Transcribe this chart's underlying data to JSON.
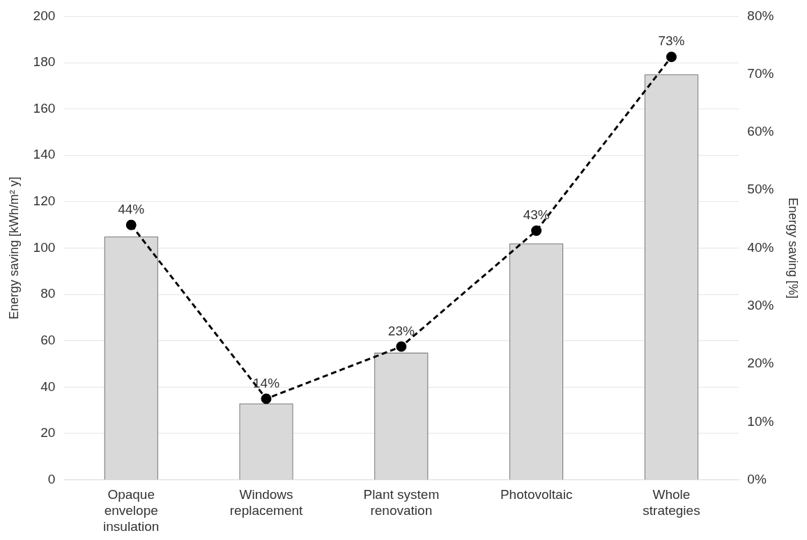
{
  "chart_data": {
    "type": "bar",
    "ylabel": "Energy saving [kWh/m² y]",
    "y2label": "Energy saving [%]",
    "categories": [
      "Opaque envelope insulation",
      "Windows replacement",
      "Plant system renovation",
      "Photovoltaic",
      "Whole strategies"
    ],
    "series": [
      {
        "color": "#d9d9d9",
        "values": [
          105,
          33,
          55,
          102,
          175
        ]
      },
      {
        "type": "line",
        "axis": "y2",
        "color": "#000000",
        "values": [
          44,
          14,
          23,
          43,
          73
        ],
        "value_labels": [
          "44%",
          "14%",
          "23%",
          "43%",
          "73%"
        ]
      }
    ],
    "ylim": [
      0,
      200
    ],
    "yticks": [
      0,
      20,
      40,
      60,
      80,
      100,
      120,
      140,
      160,
      180,
      200
    ],
    "y2lim": [
      0,
      80
    ],
    "y2ticks": [
      {
        "value": 0,
        "label": "0%"
      },
      {
        "value": 10,
        "label": "10%"
      },
      {
        "value": 20,
        "label": "20%"
      },
      {
        "value": 30,
        "label": "30%"
      },
      {
        "value": 40,
        "label": "40%"
      },
      {
        "value": 50,
        "label": "50%"
      },
      {
        "value": 60,
        "label": "60%"
      },
      {
        "value": 70,
        "label": "70%"
      },
      {
        "value": 80,
        "label": "80%"
      }
    ],
    "grid": "y",
    "legend": false,
    "marker": "circle",
    "line_style": "dashed"
  }
}
